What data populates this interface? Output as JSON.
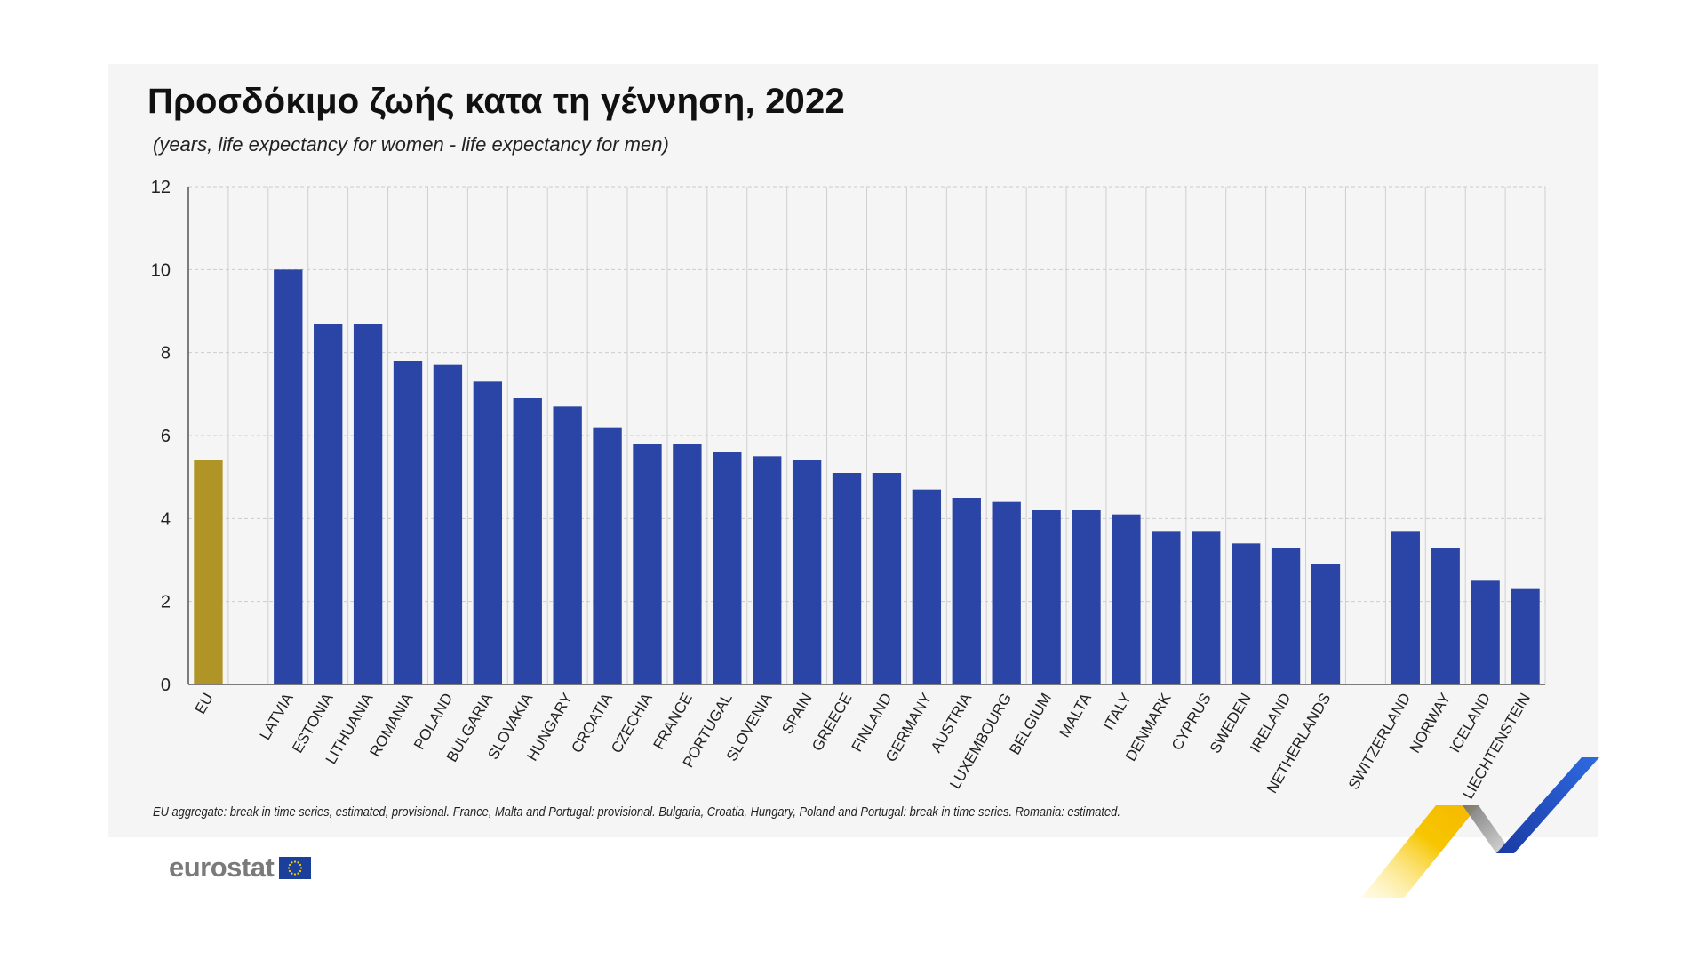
{
  "title": "Προσδόκιμο ζωής κατα τη γέννηση, 2022",
  "subtitle": "(years, life expectancy for women - life expectancy for men)",
  "footnote": "EU aggregate: break in time series, estimated, provisional. France, Malta and Portugal: provisional. Bulgaria, Croatia, Hungary, Poland and Portugal: break in time series. Romania: estimated.",
  "logo_text": "eurostat",
  "colors": {
    "eu_bar": "#b09425",
    "country_bar": "#2a45a6",
    "grid": "#cccccc",
    "axis": "#555555"
  },
  "chart_data": {
    "type": "bar",
    "title": "Προσδόκιμο ζωής κατα τη γέννηση, 2022",
    "ylabel": "",
    "xlabel": "",
    "ylim": [
      0,
      12
    ],
    "yticks": [
      0,
      2,
      4,
      6,
      8,
      10,
      12
    ],
    "grid": true,
    "categories": [
      "EU",
      "LATVIA",
      "ESTONIA",
      "LITHUANIA",
      "ROMANIA",
      "POLAND",
      "BULGARIA",
      "SLOVAKIA",
      "HUNGARY",
      "CROATIA",
      "CZECHIA",
      "FRANCE",
      "PORTUGAL",
      "SLOVENIA",
      "SPAIN",
      "GREECE",
      "FINLAND",
      "GERMANY",
      "AUSTRIA",
      "LUXEMBOURG",
      "BELGIUM",
      "MALTA",
      "ITALY",
      "DENMARK",
      "CYPRUS",
      "SWEDEN",
      "IRELAND",
      "NETHERLANDS",
      "SWITZERLAND",
      "NORWAY",
      "ICELAND",
      "LIECHTENSTEIN"
    ],
    "values": [
      5.4,
      10.0,
      8.7,
      8.7,
      7.8,
      7.7,
      7.3,
      6.9,
      6.7,
      6.2,
      5.8,
      5.8,
      5.6,
      5.5,
      5.4,
      5.1,
      5.1,
      4.7,
      4.5,
      4.4,
      4.2,
      4.2,
      4.1,
      3.7,
      3.7,
      3.4,
      3.3,
      2.9,
      3.7,
      3.3,
      2.5,
      2.3
    ]
  }
}
